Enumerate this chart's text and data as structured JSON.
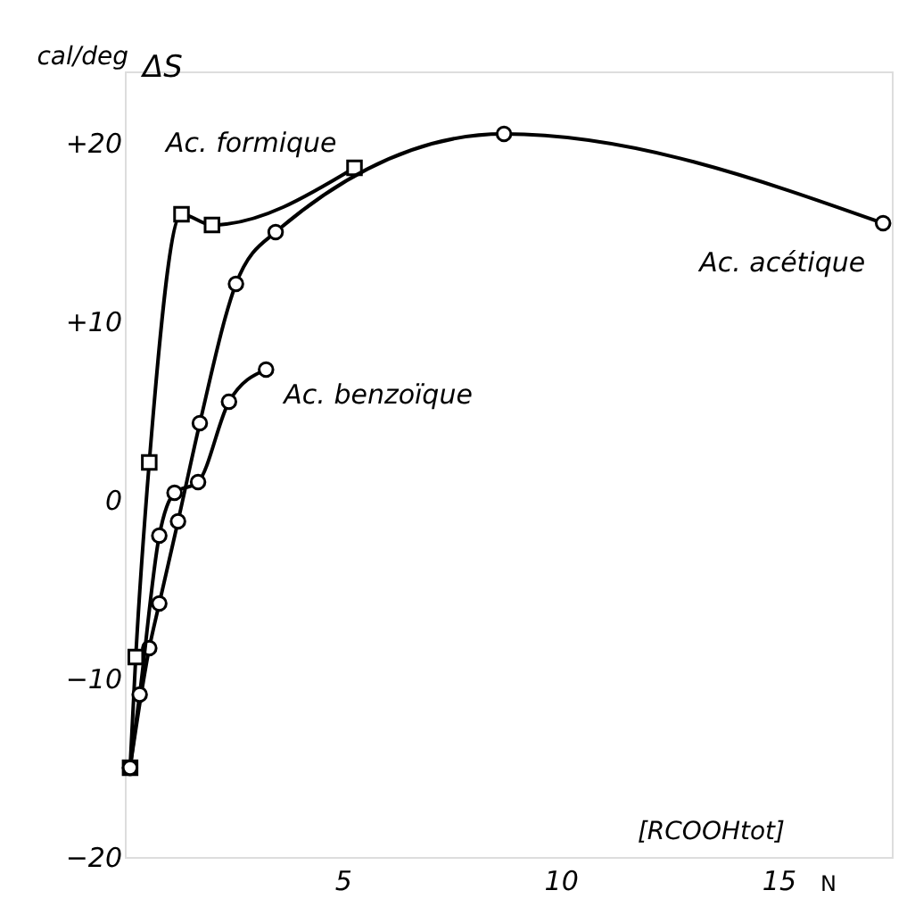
{
  "chart_data": {
    "type": "line",
    "ylabel": "cal/deg",
    "xlabel": "[RCOOHtot]",
    "annotations": [
      "ΔS",
      "N"
    ],
    "xlim": [
      0,
      17.6
    ],
    "ylim": [
      -20,
      24
    ],
    "xticks": [
      5,
      10,
      15
    ],
    "yticks": [
      {
        "value": 20,
        "label": "+20"
      },
      {
        "value": 10,
        "label": "+10"
      },
      0,
      -10,
      -20
    ],
    "grid": false,
    "line_style": "solid",
    "series": [
      {
        "name": "Ac. formique",
        "color": "#000000",
        "marker": "square",
        "x": [
          0.12,
          0.25,
          0.56,
          1.3,
          2.0,
          5.27
        ],
        "values": [
          -15,
          -8.8,
          2.1,
          16.0,
          15.4,
          18.6
        ]
      },
      {
        "name": "Ac. acétique",
        "color": "#000000",
        "marker": "circle",
        "x": [
          0.12,
          0.56,
          0.79,
          1.22,
          1.72,
          2.55,
          3.46,
          8.7,
          17.4
        ],
        "values": [
          -15,
          -8.3,
          -5.8,
          -1.2,
          4.3,
          12.1,
          15.0,
          20.5,
          15.5
        ]
      },
      {
        "name": "Ac. benzoïque",
        "color": "#000000",
        "marker": "circle",
        "x": [
          0.12,
          0.34,
          0.79,
          1.14,
          1.68,
          2.39,
          3.24
        ],
        "values": [
          -15,
          -10.9,
          -2.0,
          0.4,
          1.0,
          5.5,
          7.3
        ]
      }
    ]
  }
}
